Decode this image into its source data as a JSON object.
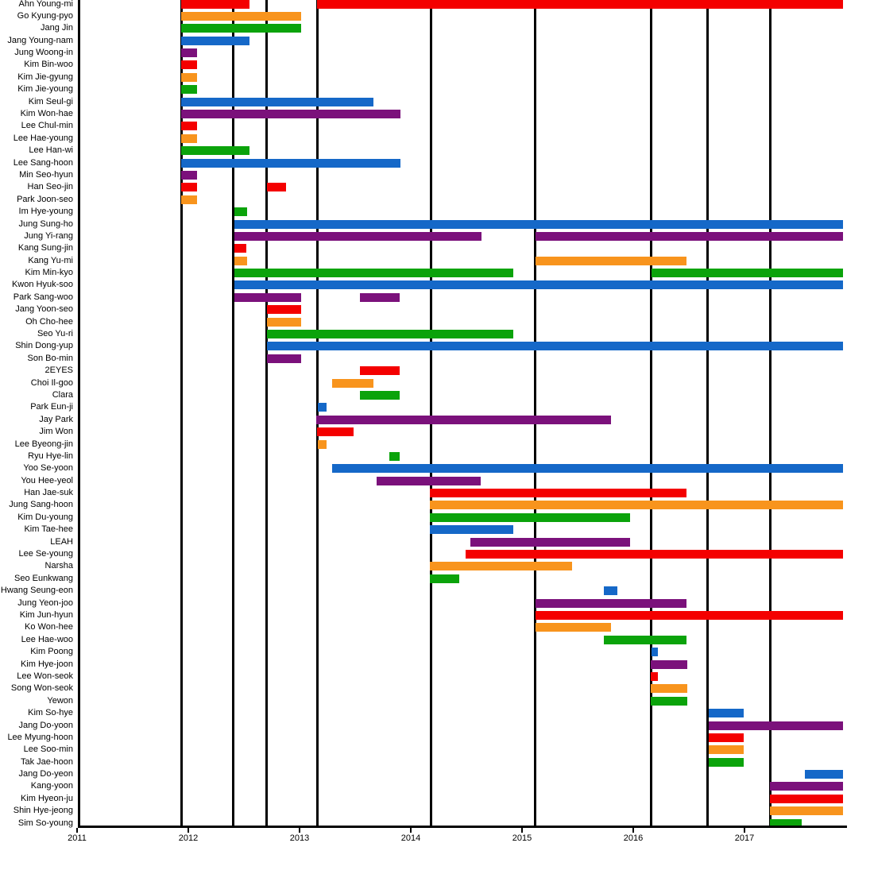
{
  "chart_data": {
    "type": "gantt",
    "description": "Cast member tenure timeline, colored bars per member across seasons",
    "x_axis": {
      "min": 2011,
      "max": 2017.9,
      "tick_years": [
        2011,
        2012,
        2013,
        2014,
        2015,
        2016,
        2017
      ],
      "tick_labels": [
        "2011",
        "2012",
        "2013",
        "2014",
        "2015",
        "2016",
        "2017"
      ]
    },
    "season_divider_years": [
      2011.936,
      2012.407,
      2012.707,
      2013.164,
      2014.179,
      2015.121,
      2016.164,
      2016.671,
      2017.229
    ],
    "colors": {
      "red": "#f40000",
      "orange": "#f8941d",
      "green": "#0ba30b",
      "blue": "#1568c8",
      "purple": "#7b117b",
      "axis": "#000000"
    },
    "members": [
      {
        "name": "Ahn Young-mi",
        "segments": [
          [
            "red",
            2011.936,
            2012.55
          ],
          [
            "red",
            2013.157,
            2017.886
          ]
        ]
      },
      {
        "name": "Go Kyung-pyo",
        "segments": [
          [
            "orange",
            2011.936,
            2013.014
          ]
        ]
      },
      {
        "name": "Jang Jin",
        "segments": [
          [
            "green",
            2011.936,
            2013.014
          ]
        ]
      },
      {
        "name": "Jang Young-nam",
        "segments": [
          [
            "blue",
            2011.936,
            2012.55
          ]
        ]
      },
      {
        "name": "Jung Woong-in",
        "segments": [
          [
            "purple",
            2011.936,
            2012.079
          ]
        ]
      },
      {
        "name": "Kim Bin-woo",
        "segments": [
          [
            "red",
            2011.936,
            2012.079
          ]
        ]
      },
      {
        "name": "Kim Jie-gyung",
        "segments": [
          [
            "orange",
            2011.936,
            2012.079
          ]
        ]
      },
      {
        "name": "Kim Jie-young",
        "segments": [
          [
            "green",
            2011.936,
            2012.079
          ]
        ]
      },
      {
        "name": "Kim Seul-gi",
        "segments": [
          [
            "blue",
            2011.936,
            2013.664
          ]
        ]
      },
      {
        "name": "Kim Won-hae",
        "segments": [
          [
            "purple",
            2011.936,
            2013.907
          ]
        ]
      },
      {
        "name": "Lee Chul-min",
        "segments": [
          [
            "red",
            2011.936,
            2012.079
          ]
        ]
      },
      {
        "name": "Lee Hae-young",
        "segments": [
          [
            "orange",
            2011.936,
            2012.079
          ]
        ]
      },
      {
        "name": "Lee Han-wi",
        "segments": [
          [
            "green",
            2011.936,
            2012.55
          ]
        ]
      },
      {
        "name": "Lee Sang-hoon",
        "segments": [
          [
            "blue",
            2011.936,
            2013.907
          ]
        ]
      },
      {
        "name": "Min Seo-hyun",
        "segments": [
          [
            "purple",
            2011.936,
            2012.079
          ]
        ]
      },
      {
        "name": "Han Seo-jin",
        "segments": [
          [
            "red",
            2011.936,
            2012.079
          ],
          [
            "red",
            2012.707,
            2012.879
          ]
        ]
      },
      {
        "name": "Park Joon-seo",
        "segments": [
          [
            "orange",
            2011.936,
            2012.079
          ]
        ]
      },
      {
        "name": "Im Hye-young",
        "segments": [
          [
            "green",
            2012.414,
            2012.529
          ]
        ]
      },
      {
        "name": "Jung Sung-ho",
        "segments": [
          [
            "blue",
            2012.414,
            2017.886
          ]
        ]
      },
      {
        "name": "Jung Yi-rang",
        "segments": [
          [
            "purple",
            2012.414,
            2014.636
          ],
          [
            "purple",
            2015.121,
            2017.886
          ]
        ]
      },
      {
        "name": "Kang Sung-jin",
        "segments": [
          [
            "red",
            2012.414,
            2012.521
          ]
        ]
      },
      {
        "name": "Kang Yu-mi",
        "segments": [
          [
            "orange",
            2012.414,
            2012.529
          ],
          [
            "orange",
            2015.121,
            2016.479
          ]
        ]
      },
      {
        "name": "Kim Min-kyo",
        "segments": [
          [
            "green",
            2012.414,
            2014.921
          ],
          [
            "green",
            2016.164,
            2017.886
          ]
        ]
      },
      {
        "name": "Kwon Hyuk-soo",
        "segments": [
          [
            "blue",
            2012.414,
            2017.886
          ]
        ]
      },
      {
        "name": "Park Sang-woo",
        "segments": [
          [
            "purple",
            2012.414,
            2013.014
          ],
          [
            "purple",
            2013.543,
            2013.9
          ]
        ]
      },
      {
        "name": "Jang Yoon-seo",
        "segments": [
          [
            "red",
            2012.707,
            2013.014
          ]
        ]
      },
      {
        "name": "Oh Cho-hee",
        "segments": [
          [
            "orange",
            2012.707,
            2013.014
          ]
        ]
      },
      {
        "name": "Seo Yu-ri",
        "segments": [
          [
            "green",
            2012.707,
            2014.921
          ]
        ]
      },
      {
        "name": "Shin Dong-yup",
        "segments": [
          [
            "blue",
            2012.707,
            2017.886
          ]
        ]
      },
      {
        "name": "Son Bo-min",
        "segments": [
          [
            "purple",
            2012.707,
            2013.014
          ]
        ]
      },
      {
        "name": "2EYES",
        "segments": [
          [
            "red",
            2013.543,
            2013.9
          ]
        ]
      },
      {
        "name": "Choi Il-goo",
        "segments": [
          [
            "orange",
            2013.293,
            2013.664
          ]
        ]
      },
      {
        "name": "Clara",
        "segments": [
          [
            "green",
            2013.543,
            2013.9
          ]
        ]
      },
      {
        "name": "Park Eun-ji",
        "segments": [
          [
            "blue",
            2013.164,
            2013.243
          ]
        ]
      },
      {
        "name": "Jay Park",
        "segments": [
          [
            "purple",
            2013.15,
            2015.8
          ]
        ]
      },
      {
        "name": "Jim Won",
        "segments": [
          [
            "red",
            2013.157,
            2013.486
          ]
        ]
      },
      {
        "name": "Lee Byeong-jin",
        "segments": [
          [
            "orange",
            2013.164,
            2013.243
          ]
        ]
      },
      {
        "name": "Ryu Hye-lin",
        "segments": [
          [
            "green",
            2013.807,
            2013.9
          ]
        ]
      },
      {
        "name": "Yoo Se-yoon",
        "segments": [
          [
            "blue",
            2013.293,
            2017.886
          ]
        ]
      },
      {
        "name": "You Hee-yeol",
        "segments": [
          [
            "purple",
            2013.693,
            2014.629
          ]
        ]
      },
      {
        "name": "Han Jae-suk",
        "segments": [
          [
            "red",
            2014.171,
            2016.479
          ]
        ]
      },
      {
        "name": "Jung Sang-hoon",
        "segments": [
          [
            "orange",
            2014.171,
            2017.886
          ]
        ]
      },
      {
        "name": "Kim Du-young",
        "segments": [
          [
            "green",
            2014.171,
            2015.971
          ]
        ]
      },
      {
        "name": "Kim Tae-hee",
        "segments": [
          [
            "blue",
            2014.171,
            2014.921
          ]
        ]
      },
      {
        "name": "LEAH",
        "segments": [
          [
            "purple",
            2014.536,
            2015.971
          ]
        ]
      },
      {
        "name": "Lee Se-young",
        "segments": [
          [
            "red",
            2014.493,
            2017.886
          ]
        ]
      },
      {
        "name": "Narsha",
        "segments": [
          [
            "orange",
            2014.171,
            2015.45
          ]
        ]
      },
      {
        "name": "Seo Eunkwang",
        "segments": [
          [
            "green",
            2014.171,
            2014.436
          ]
        ]
      },
      {
        "name": "Hwang Seung-eon",
        "segments": [
          [
            "blue",
            2015.736,
            2015.857
          ]
        ]
      },
      {
        "name": "Jung Yeon-joo",
        "segments": [
          [
            "purple",
            2015.121,
            2016.479
          ]
        ]
      },
      {
        "name": "Kim Jun-hyun",
        "segments": [
          [
            "red",
            2015.121,
            2017.886
          ]
        ]
      },
      {
        "name": "Ko Won-hee",
        "segments": [
          [
            "orange",
            2015.121,
            2015.8
          ]
        ]
      },
      {
        "name": "Lee Hae-woo",
        "segments": [
          [
            "green",
            2015.736,
            2016.479
          ]
        ]
      },
      {
        "name": "Kim Poong",
        "segments": [
          [
            "blue",
            2016.164,
            2016.221
          ]
        ]
      },
      {
        "name": "Kim Hye-joon",
        "segments": [
          [
            "purple",
            2016.157,
            2016.486
          ]
        ]
      },
      {
        "name": "Lee Won-seok",
        "segments": [
          [
            "red",
            2016.157,
            2016.221
          ]
        ]
      },
      {
        "name": "Song Won-seok",
        "segments": [
          [
            "orange",
            2016.157,
            2016.486
          ]
        ]
      },
      {
        "name": "Yewon",
        "segments": [
          [
            "green",
            2016.157,
            2016.486
          ]
        ]
      },
      {
        "name": "Kim So-hye",
        "segments": [
          [
            "blue",
            2016.679,
            2016.993
          ]
        ]
      },
      {
        "name": "Jang Do-yoon",
        "segments": [
          [
            "purple",
            2016.679,
            2017.886
          ]
        ]
      },
      {
        "name": "Lee Myung-hoon",
        "segments": [
          [
            "red",
            2016.679,
            2016.993
          ]
        ]
      },
      {
        "name": "Lee Soo-min",
        "segments": [
          [
            "orange",
            2016.679,
            2016.993
          ]
        ]
      },
      {
        "name": "Tak Jae-hoon",
        "segments": [
          [
            "green",
            2016.679,
            2016.993
          ]
        ]
      },
      {
        "name": "Jang Do-yeon",
        "segments": [
          [
            "blue",
            2017.543,
            2017.886
          ]
        ]
      },
      {
        "name": "Kang-yoon",
        "segments": [
          [
            "purple",
            2017.229,
            2017.886
          ]
        ]
      },
      {
        "name": "Kim Hyeon-ju",
        "segments": [
          [
            "red",
            2017.229,
            2017.886
          ]
        ]
      },
      {
        "name": "Shin Hye-jeong",
        "segments": [
          [
            "orange",
            2017.229,
            2017.886
          ]
        ]
      },
      {
        "name": "Sim So-young",
        "segments": [
          [
            "green",
            2017.229,
            2017.514
          ]
        ]
      }
    ]
  }
}
